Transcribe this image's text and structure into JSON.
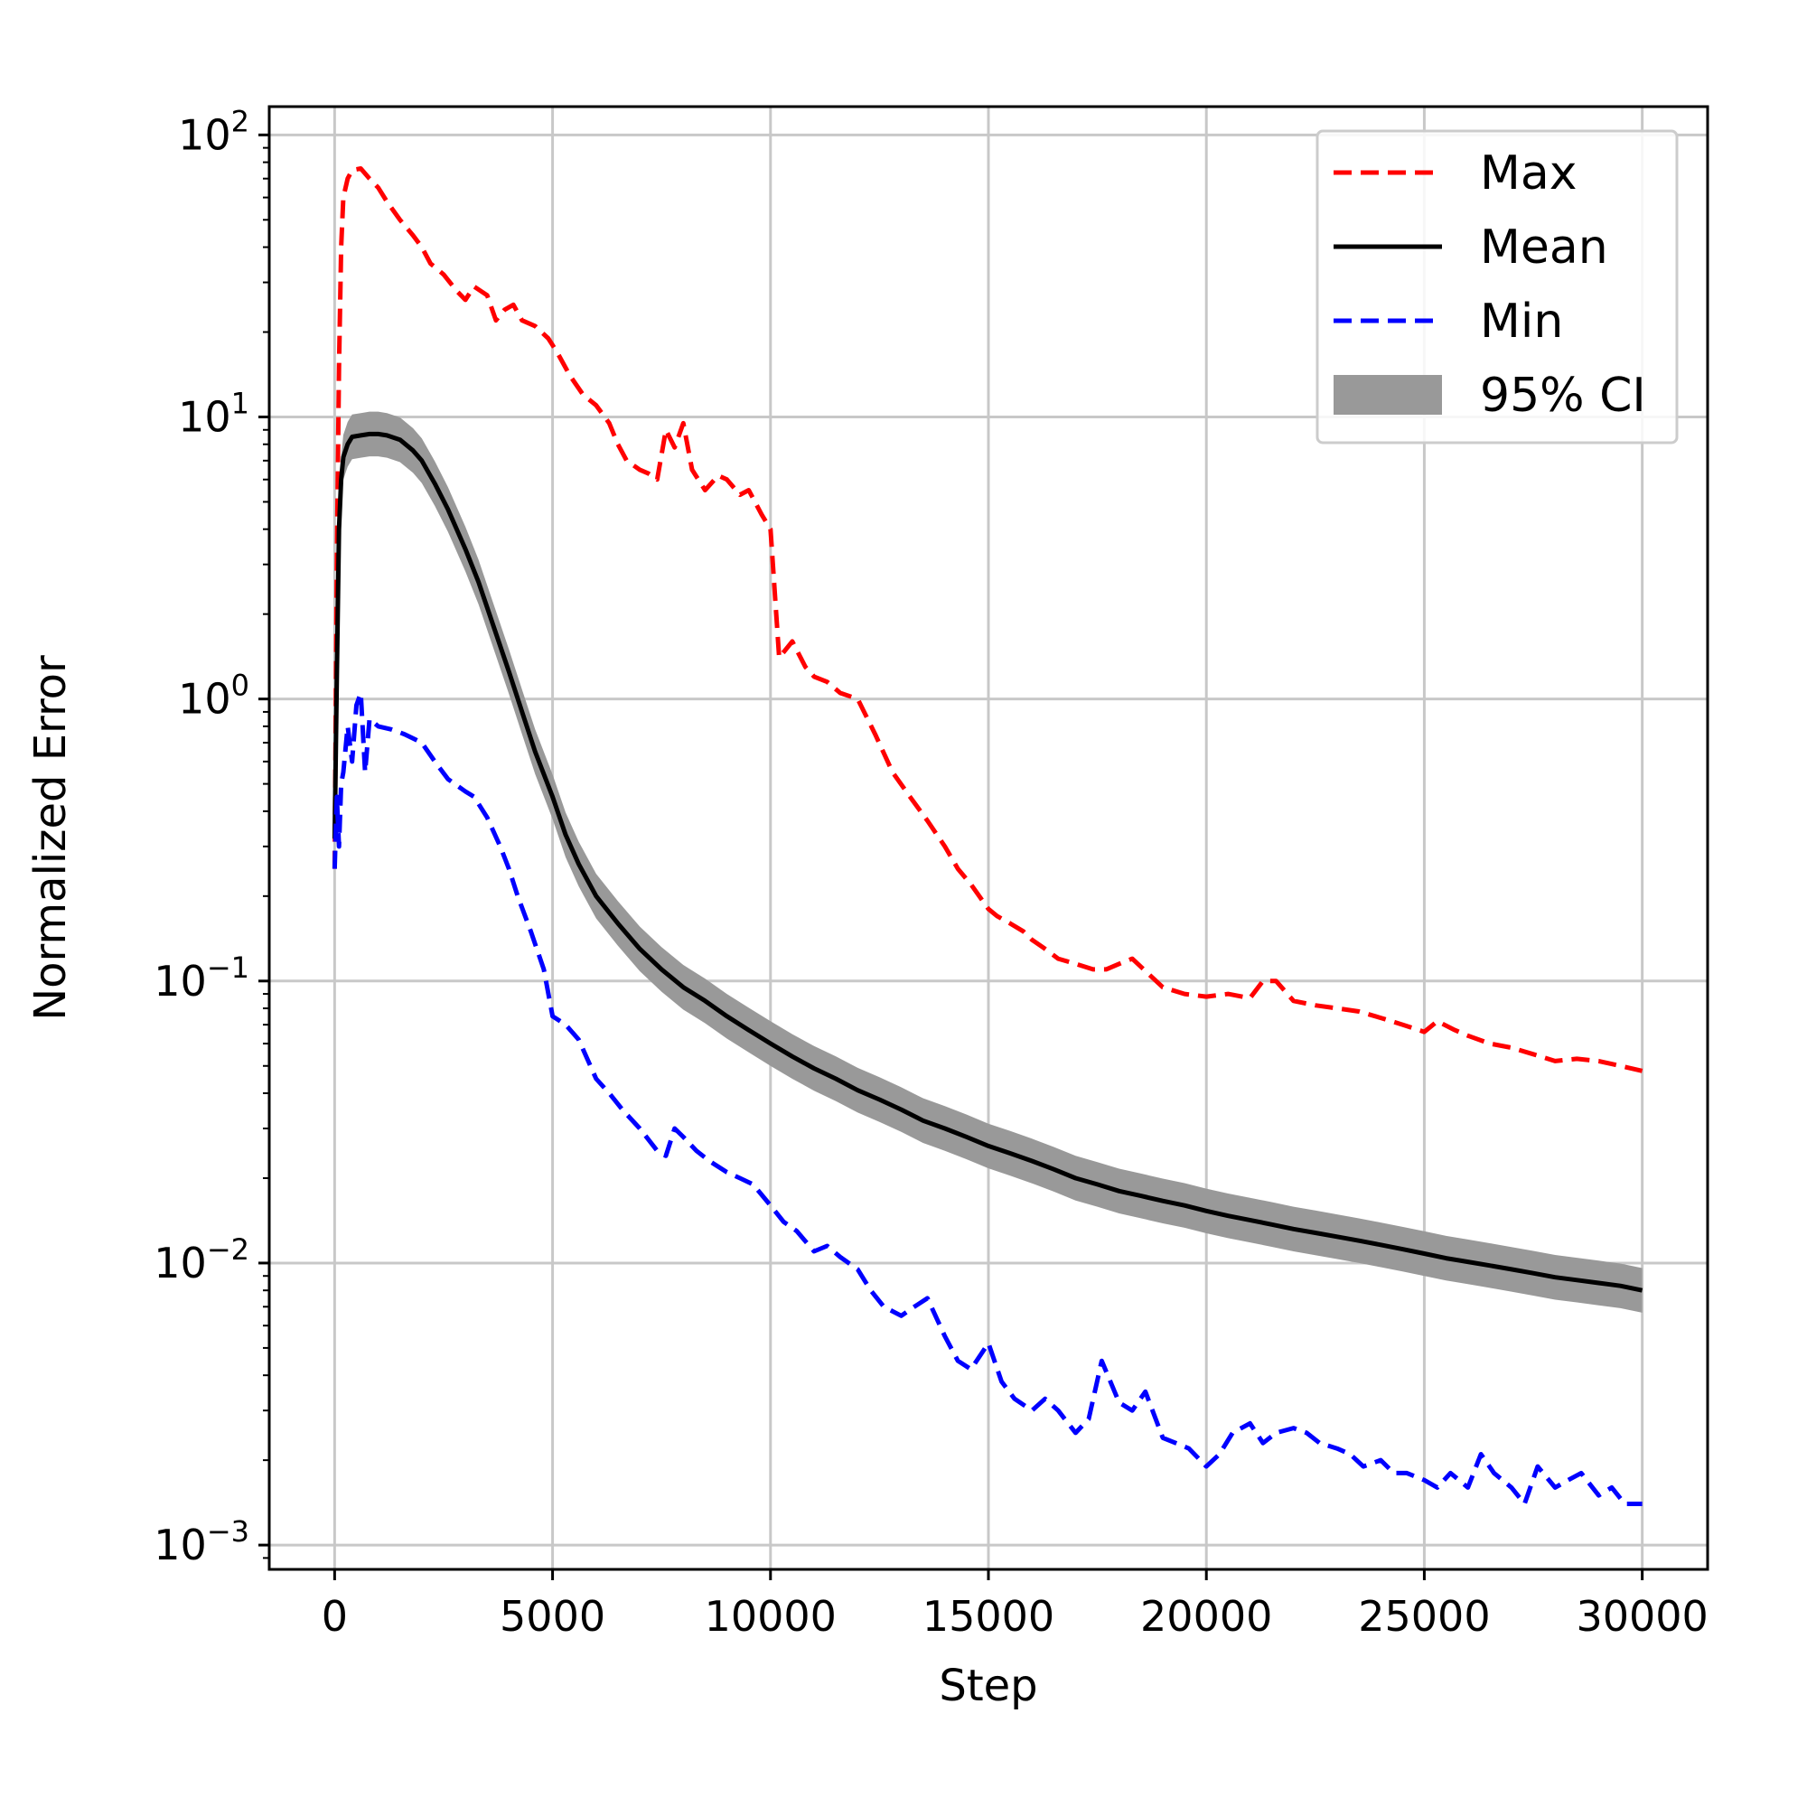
{
  "chart_data": {
    "type": "line",
    "title": "",
    "xlabel": "Step",
    "ylabel": "Normalized Error",
    "yscale": "log",
    "xlim": [
      -1500,
      31500
    ],
    "ylim": [
      0.00082,
      126
    ],
    "grid": true,
    "x_ticks": [
      0,
      5000,
      10000,
      15000,
      20000,
      25000,
      30000
    ],
    "x_tick_labels": [
      "0",
      "5000",
      "10000",
      "15000",
      "20000",
      "25000",
      "30000"
    ],
    "y_ticks": [
      {
        "value": 100,
        "base": "10",
        "exp": "2"
      },
      {
        "value": 10,
        "base": "10",
        "exp": "1"
      },
      {
        "value": 1,
        "base": "10",
        "exp": "0"
      },
      {
        "value": 0.1,
        "base": "10",
        "exp": "−1"
      },
      {
        "value": 0.01,
        "base": "10",
        "exp": "−2"
      },
      {
        "value": 0.001,
        "base": "10",
        "exp": "−3"
      }
    ],
    "legend": {
      "position": "top-right",
      "entries": [
        {
          "label": "Max",
          "style": "dashed",
          "color": "#ff0000"
        },
        {
          "label": "Mean",
          "style": "solid",
          "color": "#000000"
        },
        {
          "label": "Min",
          "style": "dashed",
          "color": "#0000ff"
        },
        {
          "label": "95% CI",
          "style": "band",
          "color": "#999999"
        }
      ]
    },
    "series": [
      {
        "name": "Max",
        "color": "#ff0000",
        "style": "dashed",
        "x": [
          0,
          50,
          100,
          150,
          200,
          300,
          400,
          600,
          800,
          1000,
          1200,
          1500,
          1800,
          2000,
          2200,
          2500,
          2800,
          3000,
          3200,
          3500,
          3700,
          3900,
          4100,
          4300,
          4600,
          4900,
          5100,
          5400,
          5700,
          6000,
          6300,
          6500,
          6700,
          7000,
          7200,
          7400,
          7600,
          7800,
          8000,
          8200,
          8500,
          8800,
          9000,
          9300,
          9500,
          9800,
          10000,
          10200,
          10500,
          10800,
          11000,
          11300,
          11600,
          12000,
          12400,
          12800,
          13200,
          13600,
          14000,
          14300,
          14600,
          15000,
          15200,
          15500,
          15800,
          16000,
          16300,
          16600,
          17000,
          17400,
          17700,
          18000,
          18300,
          18700,
          19000,
          19500,
          20000,
          20500,
          21000,
          21300,
          21600,
          22000,
          22500,
          23000,
          23500,
          24000,
          24500,
          25000,
          25300,
          25700,
          26000,
          26500,
          27000,
          27500,
          28000,
          28500,
          29000,
          29500,
          30000
        ],
        "y": [
          0.25,
          3.0,
          15,
          40,
          60,
          70,
          75,
          76,
          70,
          65,
          58,
          50,
          44,
          40,
          35,
          32,
          28,
          26,
          29,
          27,
          22,
          24,
          25,
          22,
          21,
          19,
          17,
          14,
          12,
          11,
          9.5,
          8,
          7.0,
          6.5,
          6.3,
          6.0,
          9.0,
          7.8,
          9.5,
          6.5,
          5.5,
          6.2,
          6.0,
          5.3,
          5.5,
          4.5,
          4.0,
          1.4,
          1.6,
          1.3,
          1.2,
          1.15,
          1.05,
          1.0,
          0.75,
          0.55,
          0.45,
          0.37,
          0.3,
          0.25,
          0.22,
          0.18,
          0.17,
          0.16,
          0.15,
          0.14,
          0.13,
          0.12,
          0.115,
          0.11,
          0.11,
          0.115,
          0.12,
          0.105,
          0.095,
          0.09,
          0.088,
          0.09,
          0.087,
          0.1,
          0.1,
          0.085,
          0.082,
          0.08,
          0.078,
          0.074,
          0.07,
          0.066,
          0.072,
          0.067,
          0.064,
          0.06,
          0.058,
          0.055,
          0.052,
          0.053,
          0.052,
          0.05,
          0.048
        ]
      },
      {
        "name": "Mean",
        "color": "#000000",
        "style": "solid",
        "x": [
          0,
          50,
          100,
          150,
          200,
          300,
          400,
          600,
          800,
          1000,
          1200,
          1500,
          1800,
          2000,
          2300,
          2600,
          3000,
          3300,
          3600,
          4000,
          4300,
          4600,
          5000,
          5300,
          5600,
          6000,
          6500,
          7000,
          7500,
          8000,
          8500,
          9000,
          9500,
          10000,
          10500,
          11000,
          11500,
          12000,
          12500,
          13000,
          13500,
          14000,
          14500,
          15000,
          15500,
          16000,
          16500,
          17000,
          17500,
          18000,
          18500,
          19000,
          19500,
          20000,
          20500,
          21000,
          21500,
          22000,
          22500,
          23000,
          23500,
          24000,
          24500,
          25000,
          25500,
          26000,
          26500,
          27000,
          27500,
          28000,
          28500,
          29000,
          29500,
          30000
        ],
        "y": [
          0.32,
          1.2,
          4.0,
          6.0,
          7.2,
          8.0,
          8.5,
          8.6,
          8.7,
          8.7,
          8.6,
          8.3,
          7.6,
          7.0,
          5.8,
          4.7,
          3.4,
          2.6,
          1.9,
          1.25,
          0.9,
          0.65,
          0.45,
          0.33,
          0.26,
          0.2,
          0.16,
          0.13,
          0.11,
          0.095,
          0.085,
          0.075,
          0.067,
          0.06,
          0.054,
          0.049,
          0.045,
          0.041,
          0.038,
          0.035,
          0.032,
          0.03,
          0.028,
          0.026,
          0.0245,
          0.023,
          0.0215,
          0.02,
          0.019,
          0.018,
          0.0173,
          0.0166,
          0.016,
          0.0153,
          0.0147,
          0.0142,
          0.0137,
          0.0132,
          0.0128,
          0.0124,
          0.012,
          0.0116,
          0.0112,
          0.0108,
          0.0104,
          0.0101,
          0.0098,
          0.0095,
          0.0092,
          0.0089,
          0.0087,
          0.0085,
          0.0083,
          0.008
        ]
      },
      {
        "name": "Min",
        "color": "#0000ff",
        "style": "dashed",
        "x": [
          0,
          50,
          100,
          150,
          200,
          300,
          400,
          500,
          600,
          700,
          800,
          1000,
          1300,
          1600,
          2000,
          2300,
          2600,
          3000,
          3200,
          3500,
          3800,
          4000,
          4200,
          4500,
          4800,
          5000,
          5300,
          5600,
          6000,
          6300,
          6600,
          7000,
          7400,
          7600,
          7800,
          8000,
          8300,
          8600,
          9000,
          9300,
          9600,
          10000,
          10300,
          10600,
          11000,
          11300,
          11600,
          12000,
          12300,
          12600,
          13000,
          13300,
          13600,
          14000,
          14300,
          14600,
          15000,
          15300,
          15600,
          16000,
          16300,
          16600,
          17000,
          17300,
          17600,
          18000,
          18300,
          18600,
          19000,
          19300,
          19600,
          20000,
          20300,
          20600,
          21000,
          21300,
          21600,
          22000,
          22300,
          22600,
          23000,
          23300,
          23600,
          24000,
          24300,
          24600,
          25000,
          25300,
          25600,
          26000,
          26300,
          26600,
          27000,
          27300,
          27600,
          28000,
          28300,
          28600,
          29000,
          29300,
          29600,
          30000
        ],
        "y": [
          0.25,
          0.45,
          0.3,
          0.5,
          0.55,
          0.8,
          0.6,
          0.95,
          1.05,
          0.55,
          0.85,
          0.8,
          0.78,
          0.75,
          0.7,
          0.6,
          0.52,
          0.47,
          0.45,
          0.38,
          0.3,
          0.25,
          0.2,
          0.15,
          0.11,
          0.075,
          0.07,
          0.062,
          0.045,
          0.04,
          0.035,
          0.03,
          0.025,
          0.024,
          0.03,
          0.028,
          0.025,
          0.023,
          0.021,
          0.02,
          0.019,
          0.016,
          0.014,
          0.013,
          0.011,
          0.0115,
          0.0105,
          0.0095,
          0.008,
          0.007,
          0.0065,
          0.007,
          0.0075,
          0.0055,
          0.0045,
          0.0042,
          0.0052,
          0.0038,
          0.0033,
          0.003,
          0.0033,
          0.003,
          0.0025,
          0.0028,
          0.0045,
          0.0032,
          0.003,
          0.0035,
          0.0024,
          0.0023,
          0.0022,
          0.0019,
          0.0021,
          0.0025,
          0.0027,
          0.0023,
          0.0025,
          0.0026,
          0.0025,
          0.0023,
          0.0022,
          0.0021,
          0.0019,
          0.002,
          0.0018,
          0.0018,
          0.0017,
          0.0016,
          0.0018,
          0.0016,
          0.0021,
          0.0018,
          0.0016,
          0.0014,
          0.0019,
          0.0016,
          0.0017,
          0.0018,
          0.0015,
          0.0016,
          0.0014,
          0.0014
        ]
      }
    ],
    "confidence_band": {
      "name": "95% CI",
      "color": "#999999",
      "relative_half_width": 0.2
    }
  }
}
